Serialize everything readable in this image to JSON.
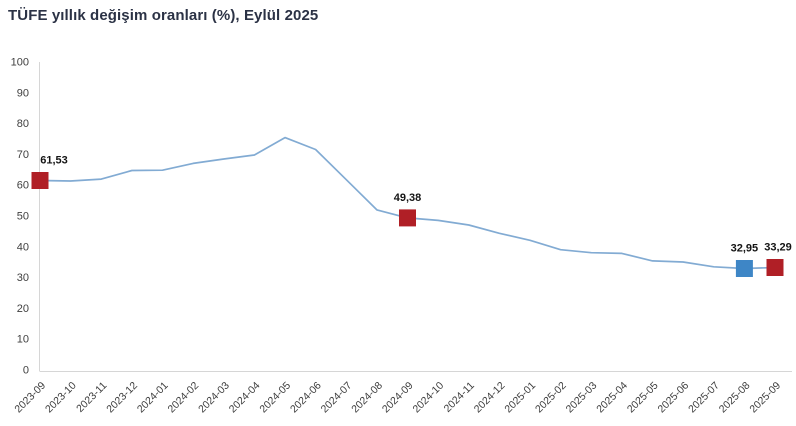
{
  "title": "TÜFE yıllık değişim oranları (%), Eylül 2025",
  "colors": {
    "background": "#ffffff",
    "title": "#2b3245",
    "line": "#82abd3",
    "marker_red": "#b01f26",
    "marker_blue": "#3e86c6",
    "axis": "#d6d6d6",
    "tick_label": "#3f3f3f",
    "data_label": "#141414"
  },
  "chart_data": {
    "type": "line",
    "title": "TÜFE yıllık değişim oranları (%), Eylül 2025",
    "xlabel": "",
    "ylabel": "",
    "ylim": [
      0,
      100
    ],
    "yticks": [
      0,
      10,
      20,
      30,
      40,
      50,
      60,
      70,
      80,
      90,
      100
    ],
    "grid": false,
    "legend": "none",
    "x": [
      "2023-09",
      "2023-10",
      "2023-11",
      "2023-12",
      "2024-01",
      "2024-02",
      "2024-03",
      "2024-04",
      "2024-05",
      "2024-06",
      "2024-07",
      "2024-08",
      "2024-09",
      "2024-10",
      "2024-11",
      "2024-12",
      "2025-01",
      "2025-02",
      "2025-03",
      "2025-04",
      "2025-05",
      "2025-06",
      "2025-07",
      "2025-08",
      "2025-09"
    ],
    "series": [
      {
        "name": "TÜFE yıllık değişim oranı (%)",
        "values": [
          61.53,
          61.36,
          61.98,
          64.77,
          64.86,
          67.07,
          68.5,
          69.8,
          75.45,
          71.6,
          61.78,
          51.97,
          49.38,
          48.58,
          47.09,
          44.38,
          42.12,
          39.05,
          38.1,
          37.86,
          35.41,
          35.05,
          33.52,
          32.95,
          33.29
        ]
      }
    ],
    "highlighted_points": [
      {
        "x": "2023-09",
        "value": 61.53,
        "label": "61,53",
        "color": "red",
        "label_dx": 14
      },
      {
        "x": "2024-09",
        "value": 49.38,
        "label": "49,38",
        "color": "red",
        "label_dx": 0
      },
      {
        "x": "2025-08",
        "value": 32.95,
        "label": "32,95",
        "color": "blue",
        "label_dx": 0
      },
      {
        "x": "2025-09",
        "value": 33.29,
        "label": "33,29",
        "color": "red",
        "label_dx": 3
      }
    ]
  }
}
